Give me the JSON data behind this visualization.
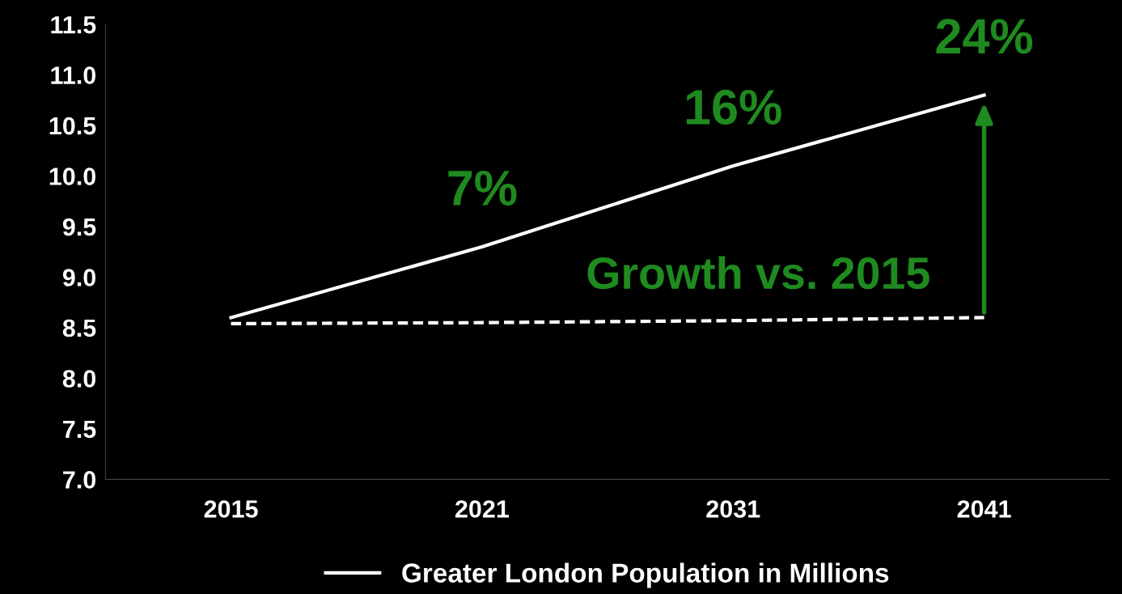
{
  "chart_data": {
    "type": "line",
    "categories": [
      "2015",
      "2021",
      "2031",
      "2041"
    ],
    "series": [
      {
        "name": "Greater London Population in Millions",
        "color": "#ffffff",
        "values": [
          8.6,
          9.3,
          10.1,
          10.8
        ],
        "line_style": "solid"
      },
      {
        "color": "#ffffff",
        "values": [
          8.54,
          8.55,
          8.57,
          8.6
        ],
        "line_style": "dashed"
      }
    ],
    "ylim": [
      7.0,
      11.5
    ],
    "yticks": [
      {
        "value": 7.0,
        "label": "7.0"
      },
      {
        "value": 7.5,
        "label": "7.5"
      },
      {
        "value": 8.0,
        "label": "8.0"
      },
      {
        "value": 8.5,
        "label": "8.5"
      },
      {
        "value": 9.0,
        "label": "9.0"
      },
      {
        "value": 9.5,
        "label": "9.5"
      },
      {
        "value": 10.0,
        "label": "10.0"
      },
      {
        "value": 10.5,
        "label": "10.5"
      },
      {
        "value": 11.0,
        "label": "11.0"
      },
      {
        "value": 11.5,
        "label": "11.5"
      }
    ],
    "annotations": [
      {
        "text": "7%",
        "x": "2021",
        "y": 9.3
      },
      {
        "text": "16%",
        "x": "2031",
        "y": 10.1
      },
      {
        "text": "24%",
        "x": "2041",
        "y": 10.8
      },
      "Growth vs. 2015"
    ],
    "grid": false,
    "legend": "bottom",
    "marker": "none"
  }
}
